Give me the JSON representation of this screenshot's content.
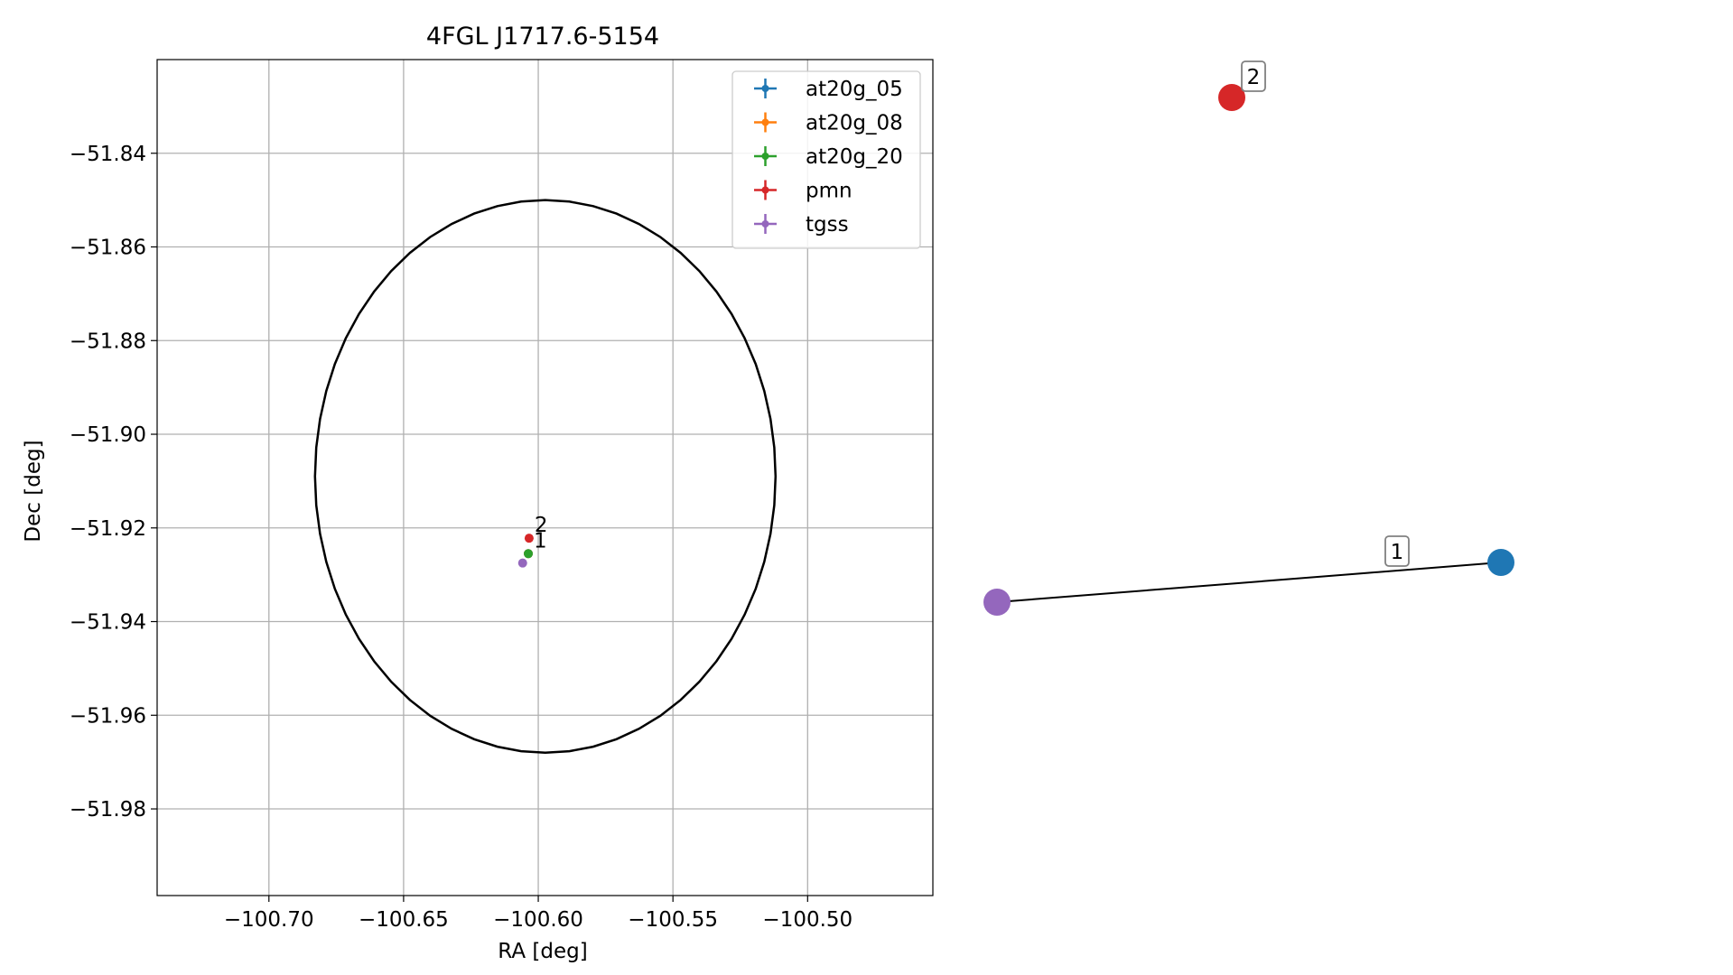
{
  "chart_data": [
    {
      "type": "scatter",
      "title": "4FGL J1717.6-5154",
      "xlabel": "RA [deg]",
      "ylabel": "Dec [deg]",
      "xlim": [
        -100.7415,
        -100.4535
      ],
      "ylim": [
        -51.9985,
        -51.82
      ],
      "xticks": [
        -100.7,
        -100.65,
        -100.6,
        -100.55,
        -100.5
      ],
      "xtick_labels": [
        "−100.70",
        "−100.65",
        "−100.60",
        "−100.55",
        "−100.50"
      ],
      "yticks": [
        -51.84,
        -51.86,
        -51.88,
        -51.9,
        -51.92,
        -51.94,
        -51.96,
        -51.98
      ],
      "ytick_labels": [
        "−51.84",
        "−51.86",
        "−51.88",
        "−51.90",
        "−51.92",
        "−51.94",
        "−51.96",
        "−51.98"
      ],
      "grid": true,
      "legend_position": "top-right",
      "ellipse": {
        "center_ra": -100.5974,
        "center_dec": -51.909,
        "semi_axis_ra": 0.0855,
        "semi_axis_dec": 0.059,
        "color": "#000000"
      },
      "series": [
        {
          "name": "at20g_05",
          "color": "#1f77b4",
          "points": [
            {
              "ra": -100.6037,
              "dec": -51.9255
            }
          ]
        },
        {
          "name": "at20g_08",
          "color": "#ff7f0e",
          "points": [
            {
              "ra": -100.6037,
              "dec": -51.9255
            }
          ]
        },
        {
          "name": "at20g_20",
          "color": "#2ca02c",
          "points": [
            {
              "ra": -100.6037,
              "dec": -51.9255
            }
          ]
        },
        {
          "name": "pmn",
          "color": "#d62728",
          "points": [
            {
              "ra": -100.6034,
              "dec": -51.9222
            }
          ]
        },
        {
          "name": "tgss",
          "color": "#9467bd",
          "points": [
            {
              "ra": -100.6058,
              "dec": -51.9275
            }
          ]
        }
      ],
      "annotations": [
        {
          "text": "2",
          "ra": -100.6034,
          "dec": -51.9222
        },
        {
          "text": "1",
          "ra": -100.6037,
          "dec": -51.9255
        }
      ]
    },
    {
      "type": "graph",
      "nodes": [
        {
          "id": "pmn",
          "color": "#d62728"
        },
        {
          "id": "tgss",
          "color": "#9467bd"
        },
        {
          "id": "at20g",
          "color": "#1f77b4"
        }
      ],
      "edges": [
        {
          "from": "tgss",
          "to": "at20g",
          "label": "1"
        }
      ],
      "node_labels": [
        {
          "node": "pmn",
          "text": "2"
        }
      ]
    }
  ]
}
